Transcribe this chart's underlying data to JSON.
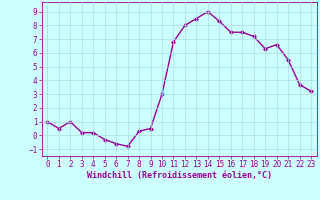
{
  "x": [
    0,
    1,
    2,
    3,
    4,
    5,
    6,
    7,
    8,
    9,
    10,
    11,
    12,
    13,
    14,
    15,
    16,
    17,
    18,
    19,
    20,
    21,
    22,
    23
  ],
  "y": [
    1,
    0.5,
    1,
    0.2,
    0.2,
    -0.3,
    -0.6,
    -0.8,
    0.3,
    0.5,
    3.0,
    6.8,
    8.0,
    8.5,
    9.0,
    8.3,
    7.5,
    7.5,
    7.2,
    6.3,
    6.6,
    5.5,
    3.7,
    3.2
  ],
  "line_color": "#990099",
  "marker": "D",
  "marker_size": 2.0,
  "bg_color": "#ccffff",
  "grid_color": "#aadddd",
  "xlabel": "Windchill (Refroidissement éolien,°C)",
  "xlabel_color": "#990099",
  "tick_color": "#990099",
  "ylim": [
    -1.5,
    9.7
  ],
  "xlim": [
    -0.5,
    23.5
  ],
  "yticks": [
    -1,
    0,
    1,
    2,
    3,
    4,
    5,
    6,
    7,
    8,
    9
  ],
  "xticks": [
    0,
    1,
    2,
    3,
    4,
    5,
    6,
    7,
    8,
    9,
    10,
    11,
    12,
    13,
    14,
    15,
    16,
    17,
    18,
    19,
    20,
    21,
    22,
    23
  ],
  "linewidth": 1.0,
  "figsize": [
    3.2,
    2.0
  ],
  "dpi": 100,
  "tick_fontsize": 5.5,
  "xlabel_fontsize": 6.0
}
